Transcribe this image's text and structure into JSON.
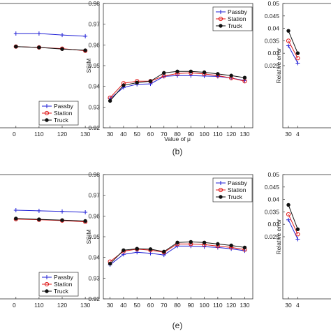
{
  "chart_data": [
    {
      "type": "line",
      "panel": "",
      "xlabel": "",
      "ylabel": "",
      "x": [
        100,
        110,
        120,
        130
      ],
      "x_ticks": [
        "0",
        "110",
        "120",
        "130"
      ],
      "ylim": [
        0.92,
        0.98
      ],
      "legend_position": "bottom-right",
      "series": [
        {
          "name": "Passby",
          "color": "#1f1fd6",
          "marker": "plus",
          "values": [
            0.9655,
            0.9655,
            0.9648,
            0.9642
          ]
        },
        {
          "name": "Station",
          "color": "#e01b1b",
          "marker": "circle",
          "values": [
            0.9592,
            0.9588,
            0.9582,
            0.9572
          ]
        },
        {
          "name": "Truck",
          "color": "#111111",
          "marker": "dot",
          "values": [
            0.9592,
            0.9588,
            0.958,
            0.9574
          ]
        }
      ]
    },
    {
      "type": "line",
      "panel": "(b)",
      "xlabel": "Value of μ",
      "ylabel": "SSIM",
      "x": [
        30,
        40,
        50,
        60,
        70,
        80,
        90,
        100,
        110,
        120,
        130
      ],
      "x_ticks": [
        "30",
        "40",
        "50",
        "60",
        "70",
        "80",
        "90",
        "100",
        "110",
        "120",
        "130"
      ],
      "ylim": [
        0.92,
        0.98
      ],
      "y_ticks": [
        "0.92",
        "0.93",
        "0.94",
        "0.95",
        "0.96",
        "0.97",
        "0.98"
      ],
      "legend_position": "top-right",
      "series": [
        {
          "name": "Passby",
          "color": "#1f1fd6",
          "marker": "plus",
          "values": [
            0.934,
            0.9395,
            0.941,
            0.9412,
            0.9448,
            0.9452,
            0.9452,
            0.945,
            0.9448,
            0.944,
            0.9428
          ]
        },
        {
          "name": "Station",
          "color": "#e01b1b",
          "marker": "circle",
          "values": [
            0.9345,
            0.9415,
            0.9425,
            0.9425,
            0.945,
            0.9462,
            0.9465,
            0.946,
            0.9452,
            0.944,
            0.9425
          ]
        },
        {
          "name": "Truck",
          "color": "#111111",
          "marker": "dot",
          "values": [
            0.933,
            0.9405,
            0.9418,
            0.9425,
            0.9465,
            0.9472,
            0.9472,
            0.9468,
            0.946,
            0.9452,
            0.9442
          ]
        }
      ]
    },
    {
      "type": "line",
      "panel": "",
      "xlabel": "",
      "ylabel": "Relative error",
      "x": [
        30,
        40
      ],
      "x_ticks": [
        "30",
        "4"
      ],
      "ylim": [
        0.0,
        0.05
      ],
      "y_ticks": [
        "0.05",
        "0.045",
        "0.04",
        "0.035",
        "0.03",
        "0.025"
      ],
      "series": [
        {
          "name": "Passby",
          "color": "#1f1fd6",
          "marker": "plus",
          "values": [
            0.033,
            0.026
          ]
        },
        {
          "name": "Station",
          "color": "#e01b1b",
          "marker": "circle",
          "values": [
            0.035,
            0.028
          ]
        },
        {
          "name": "Truck",
          "color": "#111111",
          "marker": "dot",
          "values": [
            0.039,
            0.03
          ]
        }
      ]
    },
    {
      "type": "line",
      "panel": "",
      "xlabel": "",
      "ylabel": "",
      "x": [
        100,
        110,
        120,
        130
      ],
      "x_ticks": [
        "0",
        "110",
        "120",
        "130"
      ],
      "ylim": [
        0.92,
        0.98
      ],
      "legend_position": "bottom-right",
      "series": [
        {
          "name": "Passby",
          "color": "#1f1fd6",
          "marker": "plus",
          "values": [
            0.9628,
            0.9625,
            0.9622,
            0.9618
          ]
        },
        {
          "name": "Station",
          "color": "#e01b1b",
          "marker": "circle",
          "values": [
            0.9585,
            0.9582,
            0.9578,
            0.9572
          ]
        },
        {
          "name": "Truck",
          "color": "#111111",
          "marker": "dot",
          "values": [
            0.9588,
            0.9584,
            0.958,
            0.9576
          ]
        }
      ]
    },
    {
      "type": "line",
      "panel": "(e)",
      "xlabel": "",
      "ylabel": "SSIM",
      "x": [
        30,
        40,
        50,
        60,
        70,
        80,
        90,
        100,
        110,
        120,
        130
      ],
      "x_ticks": [
        "30",
        "40",
        "50",
        "60",
        "70",
        "80",
        "90",
        "100",
        "110",
        "120",
        "130"
      ],
      "ylim": [
        0.92,
        0.98
      ],
      "y_ticks": [
        "0.92",
        "0.93",
        "0.94",
        "0.95",
        "0.96",
        "0.97",
        "0.98"
      ],
      "legend_position": "top-right",
      "series": [
        {
          "name": "Passby",
          "color": "#1f1fd6",
          "marker": "plus",
          "values": [
            0.9365,
            0.9415,
            0.9425,
            0.942,
            0.9412,
            0.9455,
            0.9455,
            0.9452,
            0.9448,
            0.9442,
            0.9432
          ]
        },
        {
          "name": "Station",
          "color": "#e01b1b",
          "marker": "circle",
          "values": [
            0.938,
            0.943,
            0.944,
            0.9435,
            0.9425,
            0.9465,
            0.9465,
            0.9462,
            0.9455,
            0.9448,
            0.9438
          ]
        },
        {
          "name": "Truck",
          "color": "#111111",
          "marker": "dot",
          "values": [
            0.937,
            0.9435,
            0.9442,
            0.944,
            0.9428,
            0.9472,
            0.9475,
            0.9472,
            0.9465,
            0.9458,
            0.9448
          ]
        }
      ]
    },
    {
      "type": "line",
      "panel": "",
      "xlabel": "",
      "ylabel": "Relative error",
      "x": [
        30,
        40
      ],
      "x_ticks": [
        "30",
        "4"
      ],
      "ylim": [
        0.0,
        0.05
      ],
      "y_ticks": [
        "0.05",
        "0.045",
        "0.04",
        "0.035",
        "0.03",
        "0.025"
      ],
      "series": [
        {
          "name": "Passby",
          "color": "#1f1fd6",
          "marker": "plus",
          "values": [
            0.0318,
            0.024
          ]
        },
        {
          "name": "Station",
          "color": "#e01b1b",
          "marker": "circle",
          "values": [
            0.034,
            0.026
          ]
        },
        {
          "name": "Truck",
          "color": "#111111",
          "marker": "dot",
          "values": [
            0.0378,
            0.028
          ]
        }
      ]
    }
  ]
}
